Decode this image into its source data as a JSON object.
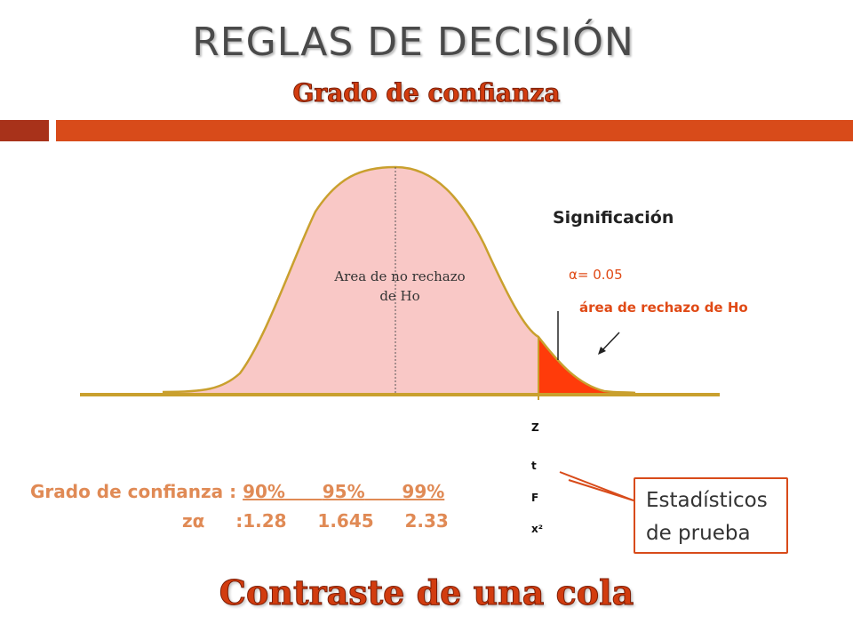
{
  "slide": {
    "title": "REGLAS DE DECISIÓN",
    "subtitle": "Grado de confianza",
    "footer": "Contraste de una cola"
  },
  "diagram": {
    "non_rejection_label": "Area de no rechazo de Ho",
    "significance_label": "Significación",
    "alpha_label": "α= 0.05",
    "rejection_label": "área de rechazo de Ho",
    "test_statistics": [
      "Z",
      "t",
      "F",
      "x²"
    ],
    "callout": [
      "Estadísticos",
      "de prueba"
    ]
  },
  "confidence_table": {
    "row_label": "Grado de confianza : ",
    "levels": [
      "90%",
      "95%",
      "99%"
    ],
    "z_label": "zα",
    "z_prefix": ":",
    "z_values": [
      "1.28",
      "1.645",
      "2.33"
    ]
  },
  "colors": {
    "curve_fill": "#f9c8c6",
    "curve_stroke": "#c9a02e",
    "rejection_fill": "#ff3b0a",
    "accent": "#d84b1a"
  }
}
